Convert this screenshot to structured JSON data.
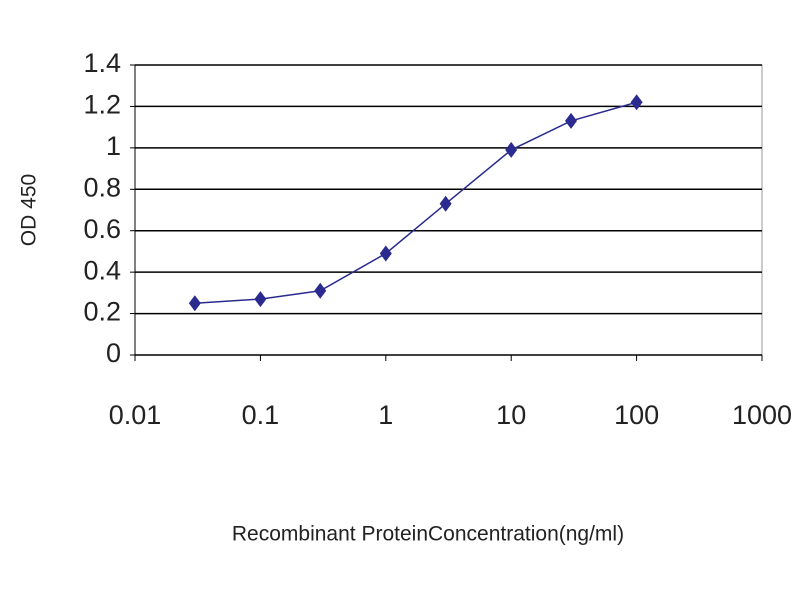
{
  "chart_data": {
    "type": "line",
    "x_label": "Recombinant ProteinConcentration(ng/ml)",
    "y_label": "OD 450",
    "x": [
      0.03,
      0.1,
      0.3,
      1,
      3,
      10,
      30,
      100
    ],
    "series": [
      {
        "name": "OD 450",
        "color": "#2b2b8f",
        "values": [
          0.25,
          0.27,
          0.31,
          0.49,
          0.73,
          0.99,
          1.13,
          1.22
        ]
      }
    ],
    "xscale": "log",
    "xlim": [
      0.01,
      1000
    ],
    "xticks": [
      0.01,
      0.1,
      1,
      10,
      100,
      1000
    ],
    "ylim": [
      0,
      1.4
    ],
    "yticks": [
      0,
      0.2,
      0.4,
      0.6,
      0.8,
      1,
      1.2,
      1.4
    ],
    "grid": true
  }
}
